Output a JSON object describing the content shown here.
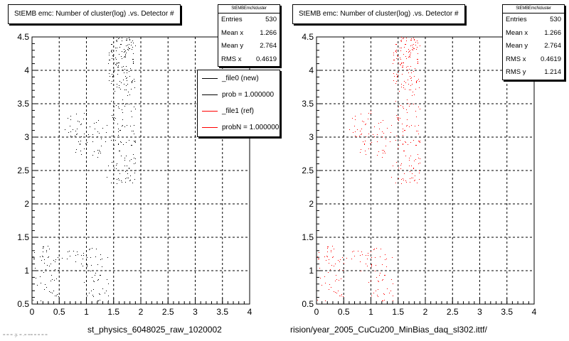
{
  "left_panel": {
    "title": "StEMB emc: Number of cluster(log) .vs. Detector #",
    "stats": {
      "header": "StEMBEmcNcluster",
      "rows": [
        {
          "label": "Entries",
          "value": "530"
        },
        {
          "label": "Mean x",
          "value": "1.266"
        },
        {
          "label": "Mean y",
          "value": "2.764"
        },
        {
          "label": "RMS x",
          "value": "0.4619"
        }
      ]
    },
    "legend": [
      {
        "label": "_file0 (new)",
        "color": "#000000"
      },
      {
        "label": "prob = 1.000000",
        "color": "#000000"
      },
      {
        "label": "_file1 (ref)",
        "color": "#ff0000"
      },
      {
        "label": "probN = 1.000000",
        "color": "#ff0000"
      }
    ],
    "bottom_label": "st_physics_6048025_raw_1020002",
    "corner_note": "= = = .y. = .= == = = = ="
  },
  "right_panel": {
    "title": "StEMB emc: Number of cluster(log) .vs. Detector #",
    "stats": {
      "header": "StEMBEmcNcluster",
      "rows": [
        {
          "label": "Entries",
          "value": "530"
        },
        {
          "label": "Mean x",
          "value": "1.266"
        },
        {
          "label": "Mean y",
          "value": "2.764"
        },
        {
          "label": "RMS x",
          "value": "0.4619"
        },
        {
          "label": "RMS y",
          "value": "1.214"
        }
      ]
    },
    "bottom_label": "rision/year_2005_CuCu200_MinBias_daq_sl302.ittf/"
  },
  "chart_data": [
    {
      "type": "scatter",
      "xlim": [
        0,
        4
      ],
      "ylim": [
        0.5,
        4.5
      ],
      "x_ticks": [
        "0",
        "0.5",
        "1",
        "1.5",
        "2",
        "2.5",
        "3",
        "3.5",
        "4"
      ],
      "y_ticks": [
        "0.5",
        "1",
        "1.5",
        "2",
        "2.5",
        "3",
        "3.5",
        "4",
        "4.5"
      ],
      "grid": true,
      "series": [
        {
          "color": "#000000",
          "clusters": [
            {
              "x": [
                0.0,
                0.5
              ],
              "y": [
                0.55,
                1.4
              ],
              "n": 55
            },
            {
              "x": [
                0.95,
                1.4
              ],
              "y": [
                0.55,
                1.4
              ],
              "n": 45
            },
            {
              "x": [
                0.7,
                1.3
              ],
              "y": [
                2.7,
                3.3
              ],
              "n": 40
            },
            {
              "x": [
                1.35,
                1.9
              ],
              "y": [
                2.3,
                3.7
              ],
              "n": 110
            },
            {
              "x": [
                1.4,
                1.9
              ],
              "y": [
                3.7,
                4.5
              ],
              "n": 130
            },
            {
              "x": [
                0.5,
                1.2
              ],
              "y": [
                1.0,
                1.3
              ],
              "n": 20
            },
            {
              "x": [
                0.6,
                1.0
              ],
              "y": [
                3.0,
                3.4
              ],
              "n": 20
            }
          ]
        }
      ]
    },
    {
      "type": "scatter",
      "xlim": [
        0,
        4
      ],
      "ylim": [
        0.5,
        4.5
      ],
      "x_ticks": [
        "0",
        "0.5",
        "1",
        "1.5",
        "2",
        "2.5",
        "3",
        "3.5",
        "4"
      ],
      "y_ticks": [
        "0.5",
        "1",
        "1.5",
        "2",
        "2.5",
        "3",
        "3.5",
        "4",
        "4.5"
      ],
      "grid": true,
      "series": [
        {
          "color": "#ff0000",
          "clusters": [
            {
              "x": [
                0.0,
                0.5
              ],
              "y": [
                0.55,
                1.4
              ],
              "n": 55
            },
            {
              "x": [
                0.95,
                1.4
              ],
              "y": [
                0.55,
                1.4
              ],
              "n": 45
            },
            {
              "x": [
                0.7,
                1.3
              ],
              "y": [
                2.7,
                3.3
              ],
              "n": 40
            },
            {
              "x": [
                1.35,
                1.9
              ],
              "y": [
                2.3,
                3.7
              ],
              "n": 110
            },
            {
              "x": [
                1.4,
                1.9
              ],
              "y": [
                3.7,
                4.5
              ],
              "n": 130
            },
            {
              "x": [
                0.5,
                1.2
              ],
              "y": [
                1.0,
                1.3
              ],
              "n": 20
            },
            {
              "x": [
                0.6,
                1.0
              ],
              "y": [
                3.0,
                3.4
              ],
              "n": 20
            }
          ]
        }
      ]
    }
  ]
}
